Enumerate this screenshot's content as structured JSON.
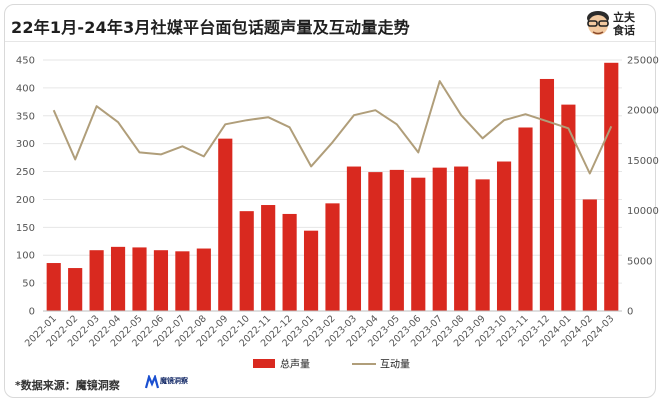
{
  "header": {
    "title": "22年1月-24年3月社媒平台面包话题声量及互动量走势",
    "brand_text": "立夫食话"
  },
  "footer": {
    "source": "*数据来源：魔镜洞察",
    "source_logo_text": "魔镜洞察"
  },
  "colors": {
    "bar": "#d9291f",
    "line": "#b09e7a",
    "grid": "#e6e6e6",
    "axis": "#bfbfbf"
  },
  "chart_data": {
    "type": "bar",
    "categories": [
      "2022-01",
      "2022-02",
      "2022-03",
      "2022-04",
      "2022-05",
      "2022-06",
      "2022-07",
      "2022-08",
      "2022-09",
      "2022-10",
      "2022-11",
      "2022-12",
      "2023-01",
      "2023-02",
      "2023-03",
      "2023-04",
      "2023-05",
      "2023-06",
      "2023-07",
      "2023-08",
      "2023-09",
      "2023-10",
      "2023-11",
      "2023-12",
      "2024-01",
      "2024-02",
      "2024-03"
    ],
    "series": [
      {
        "name": "总声量",
        "type": "bar",
        "axis": "left",
        "values": [
          86,
          77,
          109,
          115,
          114,
          109,
          107,
          112,
          309,
          179,
          190,
          174,
          144,
          193,
          259,
          249,
          253,
          239,
          257,
          259,
          236,
          268,
          329,
          416,
          370,
          200,
          445
        ]
      },
      {
        "name": "互动量",
        "type": "line",
        "axis": "right",
        "values": [
          20000,
          15100,
          20400,
          18800,
          15800,
          15600,
          16400,
          15400,
          18600,
          19000,
          19300,
          18300,
          14400,
          16800,
          19500,
          20000,
          18600,
          15800,
          22900,
          19500,
          17200,
          19000,
          19600,
          18900,
          18200,
          13700,
          18400
        ]
      }
    ],
    "left_axis": {
      "ylim": [
        0,
        450
      ],
      "ticks": [
        "0",
        "50",
        "100",
        "150",
        "200",
        "250",
        "300",
        "350",
        "400",
        "450"
      ]
    },
    "right_axis": {
      "ylim": [
        0,
        25000
      ],
      "ticks": [
        "0",
        "5000",
        "10000",
        "15000",
        "20000",
        "25000"
      ]
    },
    "legend": {
      "position": "bottom"
    },
    "grid": true
  }
}
